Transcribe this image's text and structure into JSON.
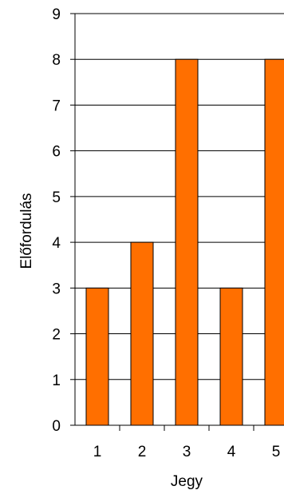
{
  "chart_data": {
    "type": "bar",
    "title": "",
    "xlabel": "Jegy",
    "ylabel": "Előfordulás",
    "categories": [
      "1",
      "2",
      "3",
      "4",
      "5"
    ],
    "values": [
      3,
      4,
      8,
      3,
      8
    ],
    "y_ticks": [
      "0",
      "1",
      "2",
      "3",
      "4",
      "5",
      "6",
      "7",
      "8",
      "9"
    ],
    "ylim": [
      0,
      9
    ],
    "grid": true,
    "legend": "none",
    "colors": {
      "bar_fill": "#ff6f00",
      "bar_stroke": "#000000",
      "grid": "#000000",
      "axis": "#000000",
      "background": "#ffffff"
    }
  }
}
